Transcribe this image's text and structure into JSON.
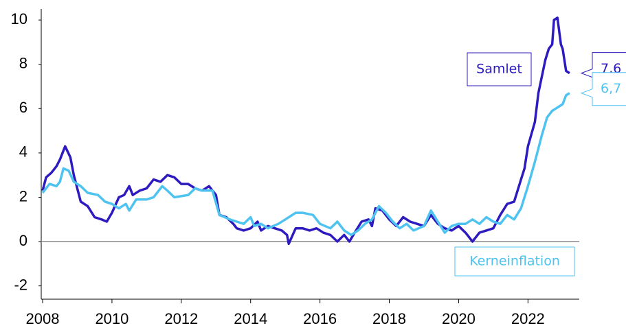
{
  "chart_data": {
    "type": "line",
    "xlim": [
      2007.96,
      2023.48
    ],
    "xticks": [
      2008,
      2010,
      2012,
      2014,
      2016,
      2018,
      2020,
      2022
    ],
    "ylim": [
      -2.6,
      10.5
    ],
    "yticks": [
      -2,
      0,
      2,
      4,
      6,
      8,
      10
    ],
    "series": [
      {
        "name": "Samlet",
        "color": "#2e1bbf",
        "x": [
          2008.0,
          2008.1,
          2008.25,
          2008.4,
          2008.5,
          2008.65,
          2008.8,
          2008.9,
          2009.1,
          2009.3,
          2009.5,
          2009.7,
          2009.85,
          2010.0,
          2010.2,
          2010.35,
          2010.5,
          2010.6,
          2010.8,
          2011.0,
          2011.2,
          2011.4,
          2011.6,
          2011.8,
          2012.0,
          2012.2,
          2012.4,
          2012.6,
          2012.8,
          2013.0,
          2013.1,
          2013.3,
          2013.5,
          2013.6,
          2013.8,
          2014.0,
          2014.2,
          2014.3,
          2014.5,
          2014.7,
          2014.9,
          2015.05,
          2015.1,
          2015.3,
          2015.5,
          2015.7,
          2015.9,
          2016.1,
          2016.3,
          2016.5,
          2016.7,
          2016.85,
          2017.0,
          2017.2,
          2017.4,
          2017.5,
          2017.6,
          2017.8,
          2018.0,
          2018.2,
          2018.4,
          2018.6,
          2018.8,
          2019.0,
          2019.2,
          2019.4,
          2019.6,
          2019.8,
          2020.0,
          2020.2,
          2020.4,
          2020.6,
          2020.8,
          2021.0,
          2021.2,
          2021.4,
          2021.6,
          2021.8,
          2021.9,
          2022.0,
          2022.2,
          2022.3,
          2022.5,
          2022.6,
          2022.7,
          2022.75,
          2022.85,
          2022.95,
          2023.0,
          2023.1,
          2023.2
        ],
        "values": [
          2.3,
          2.9,
          3.1,
          3.4,
          3.7,
          4.3,
          3.8,
          3.0,
          1.8,
          1.6,
          1.1,
          1.0,
          0.9,
          1.3,
          2.0,
          2.1,
          2.5,
          2.1,
          2.3,
          2.4,
          2.8,
          2.7,
          3.0,
          2.9,
          2.6,
          2.6,
          2.4,
          2.3,
          2.5,
          2.1,
          1.2,
          1.1,
          0.8,
          0.6,
          0.5,
          0.6,
          0.9,
          0.5,
          0.7,
          0.6,
          0.5,
          0.3,
          -0.1,
          0.6,
          0.6,
          0.5,
          0.6,
          0.4,
          0.3,
          0.0,
          0.3,
          0.0,
          0.4,
          0.9,
          1.0,
          0.7,
          1.5,
          1.4,
          1.0,
          0.7,
          1.1,
          0.9,
          0.8,
          0.7,
          1.2,
          0.8,
          0.6,
          0.5,
          0.7,
          0.4,
          0.0,
          0.4,
          0.5,
          0.6,
          1.2,
          1.7,
          1.8,
          2.8,
          3.3,
          4.3,
          5.4,
          6.7,
          8.2,
          8.7,
          8.9,
          10.0,
          10.1,
          8.9,
          8.7,
          7.7,
          7.6
        ],
        "value_labels": [
          null,
          null,
          null,
          null,
          null,
          null,
          null,
          null,
          null,
          null,
          null,
          null,
          null,
          null,
          null,
          null,
          null,
          null,
          null,
          null,
          null,
          null,
          null,
          null,
          null,
          null,
          null,
          null,
          null,
          null,
          null,
          null,
          null,
          null,
          null,
          null,
          null,
          null,
          null,
          null,
          null,
          null,
          null,
          null,
          null,
          null,
          null,
          null,
          null,
          null,
          null,
          null,
          null,
          null,
          null,
          null,
          null,
          null,
          null,
          null,
          null,
          null,
          null,
          null,
          null,
          null,
          null,
          null,
          null,
          null,
          null,
          null,
          null,
          null,
          null,
          null,
          null,
          null,
          null,
          null,
          null,
          null,
          null,
          null,
          null,
          null,
          null,
          null,
          null,
          null,
          "7,6"
        ]
      },
      {
        "name": "Kerneinflation",
        "color": "#4fc3f0",
        "x": [
          2008.0,
          2008.2,
          2008.4,
          2008.5,
          2008.6,
          2008.75,
          2008.9,
          2009.1,
          2009.3,
          2009.6,
          2009.8,
          2010.0,
          2010.2,
          2010.4,
          2010.5,
          2010.7,
          2011.0,
          2011.2,
          2011.45,
          2011.6,
          2011.8,
          2012.2,
          2012.4,
          2012.6,
          2012.9,
          2013.1,
          2013.4,
          2013.6,
          2013.8,
          2014.0,
          2014.1,
          2014.3,
          2014.5,
          2014.8,
          2015.0,
          2015.3,
          2015.5,
          2015.8,
          2016.0,
          2016.3,
          2016.5,
          2016.7,
          2016.9,
          2017.1,
          2017.3,
          2017.5,
          2017.7,
          2017.9,
          2018.1,
          2018.3,
          2018.5,
          2018.7,
          2019.0,
          2019.2,
          2019.4,
          2019.6,
          2019.8,
          2020.0,
          2020.2,
          2020.4,
          2020.6,
          2020.8,
          2021.0,
          2021.2,
          2021.4,
          2021.6,
          2021.8,
          2022.0,
          2022.2,
          2022.4,
          2022.55,
          2022.7,
          2022.8,
          2022.9,
          2023.0,
          2023.1,
          2023.2
        ],
        "values": [
          2.2,
          2.6,
          2.5,
          2.7,
          3.3,
          3.2,
          2.7,
          2.5,
          2.2,
          2.1,
          1.8,
          1.7,
          1.5,
          1.7,
          1.4,
          1.9,
          1.9,
          2.0,
          2.5,
          2.3,
          2.0,
          2.1,
          2.4,
          2.3,
          2.3,
          1.2,
          1.0,
          0.9,
          0.8,
          1.1,
          0.7,
          0.8,
          0.6,
          0.8,
          1.0,
          1.3,
          1.3,
          1.2,
          0.8,
          0.6,
          0.9,
          0.5,
          0.3,
          0.5,
          0.8,
          1.0,
          1.6,
          1.3,
          0.9,
          0.6,
          0.8,
          0.5,
          0.7,
          1.4,
          0.9,
          0.4,
          0.7,
          0.8,
          0.8,
          1.0,
          0.8,
          1.1,
          0.9,
          0.8,
          1.2,
          1.0,
          1.5,
          2.5,
          3.6,
          4.8,
          5.6,
          5.9,
          6.0,
          6.1,
          6.2,
          6.6,
          6.7
        ],
        "value_labels": [
          null,
          null,
          null,
          null,
          null,
          null,
          null,
          null,
          null,
          null,
          null,
          null,
          null,
          null,
          null,
          null,
          null,
          null,
          null,
          null,
          null,
          null,
          null,
          null,
          null,
          null,
          null,
          null,
          null,
          null,
          null,
          null,
          null,
          null,
          null,
          null,
          null,
          null,
          null,
          null,
          null,
          null,
          null,
          null,
          null,
          null,
          null,
          null,
          null,
          null,
          null,
          null,
          null,
          null,
          null,
          null,
          null,
          null,
          null,
          null,
          null,
          null,
          null,
          null,
          null,
          null,
          null,
          null,
          null,
          null,
          null,
          null,
          null,
          null,
          null,
          null,
          "6,7"
        ]
      }
    ]
  }
}
